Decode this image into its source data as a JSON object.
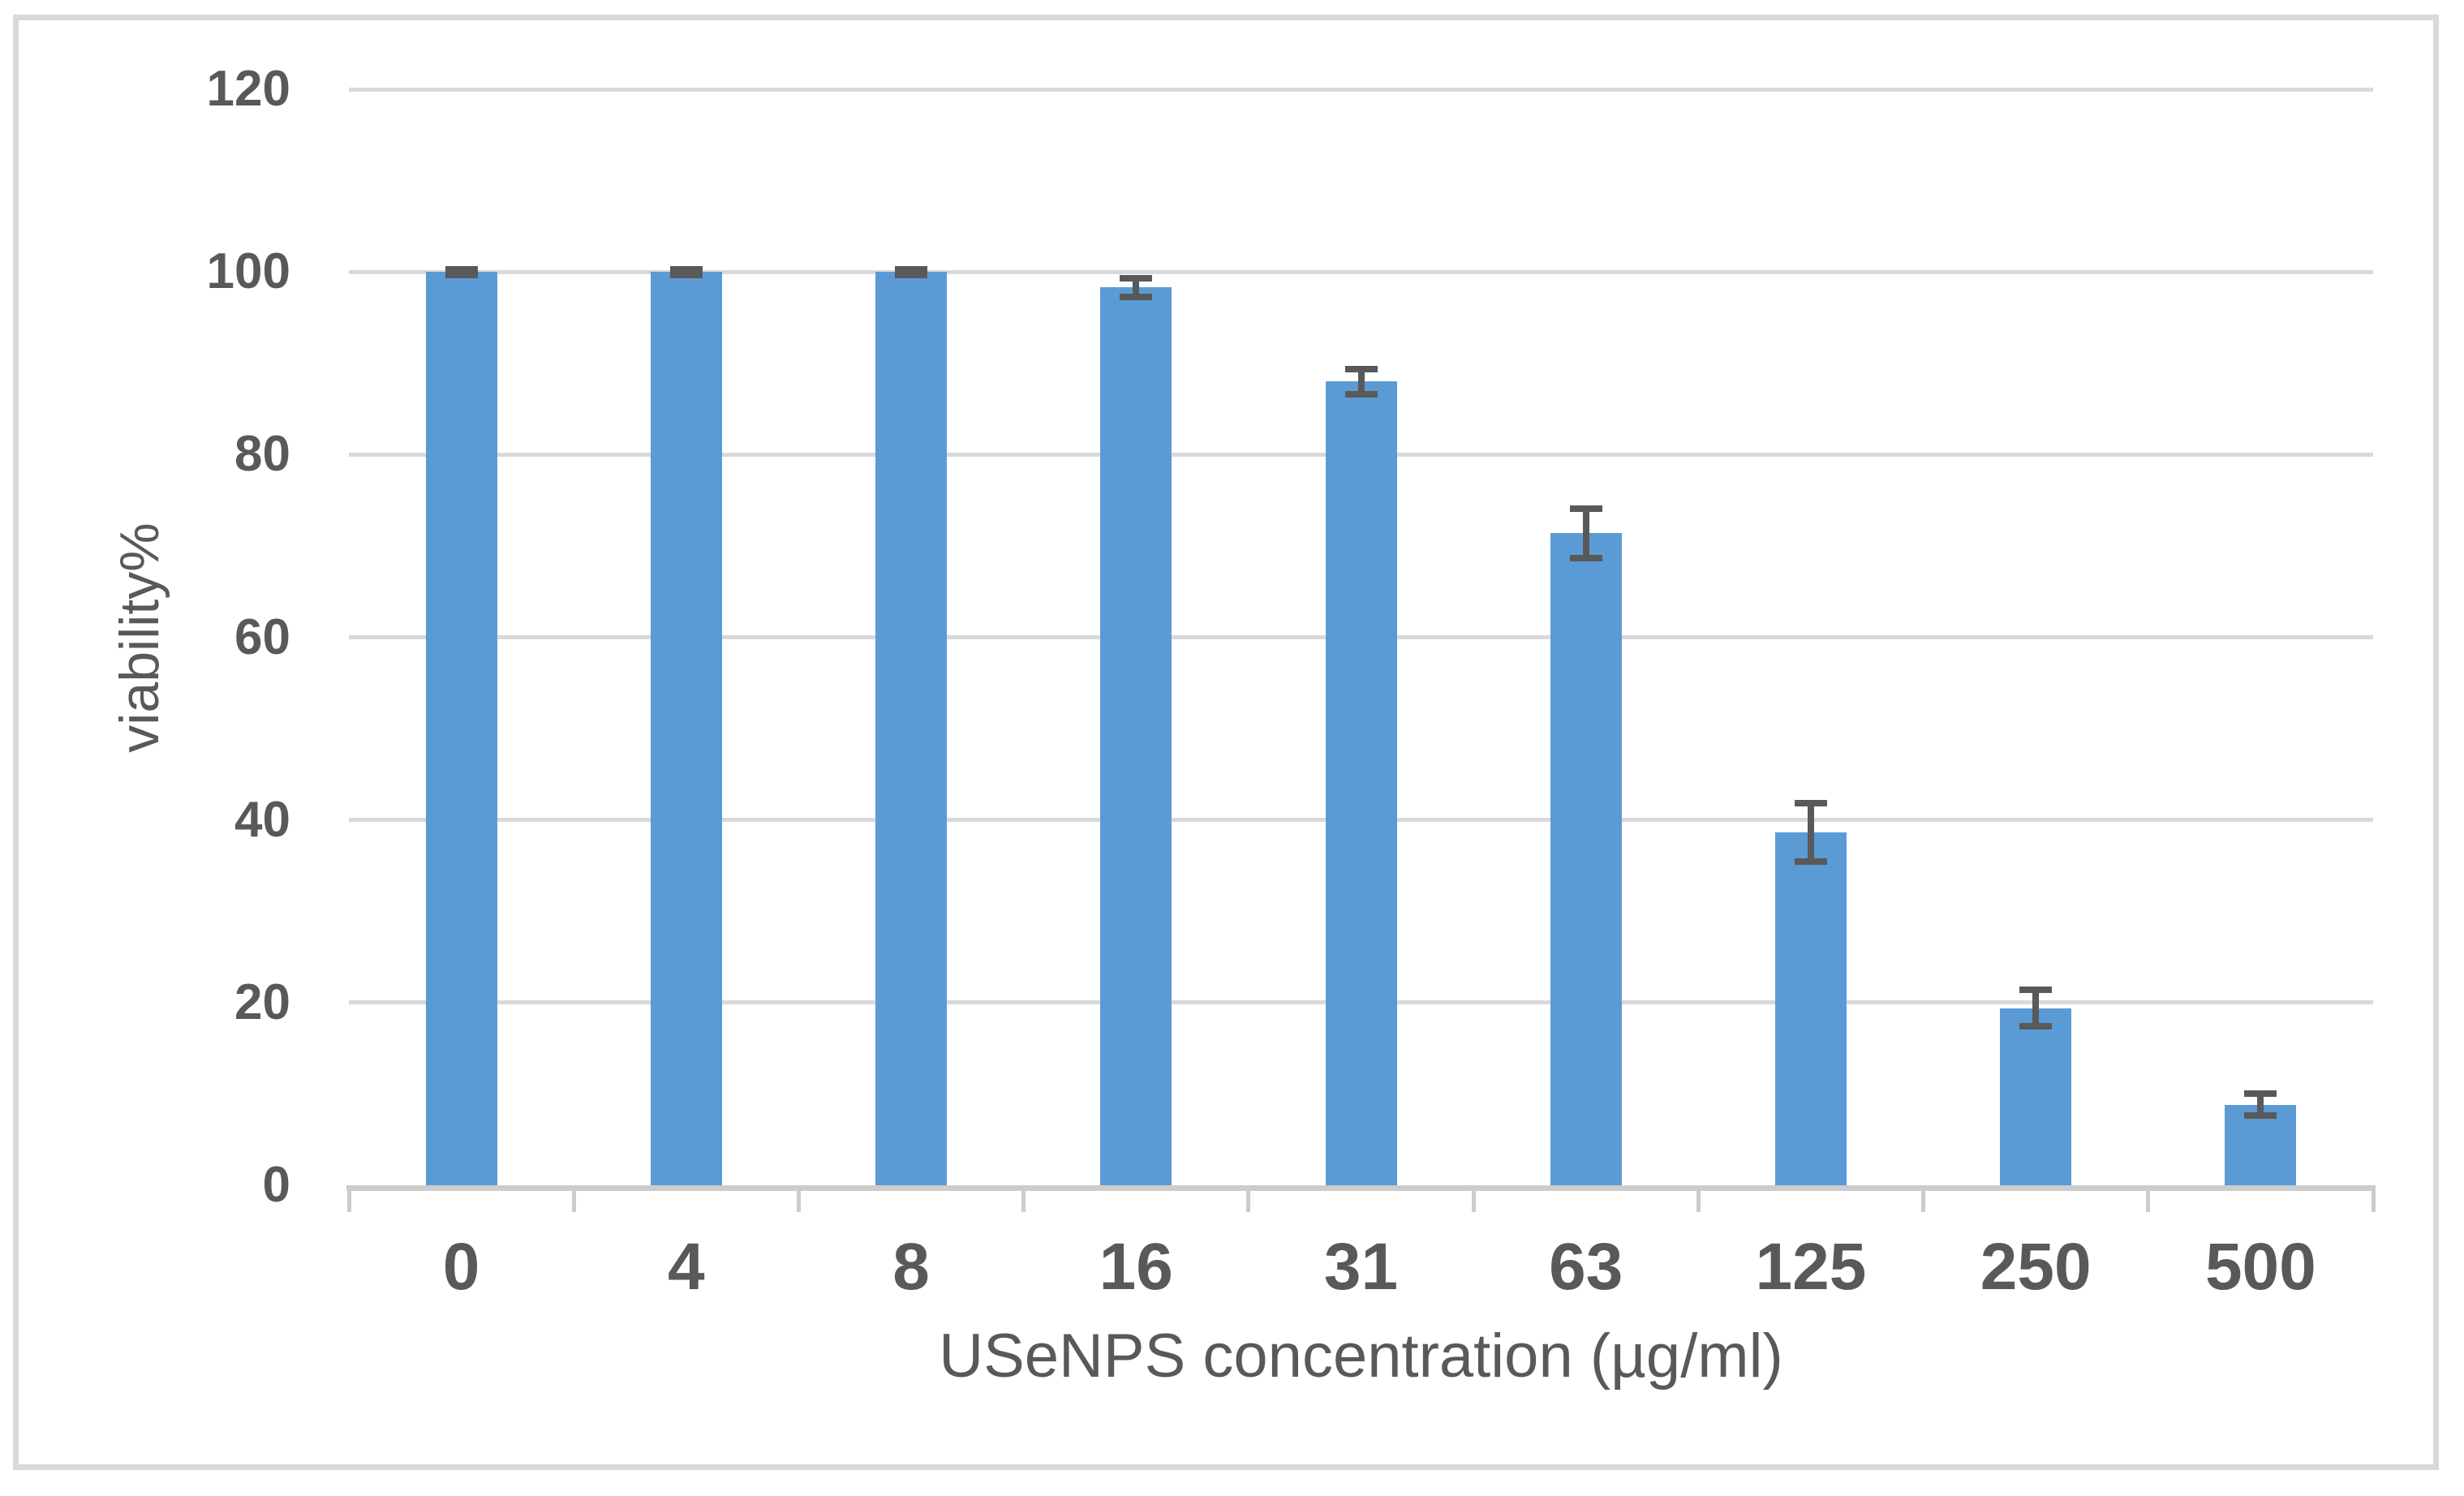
{
  "chart_data": {
    "type": "bar",
    "title": "",
    "xlabel": "USeNPS concentration (µg/ml)",
    "ylabel": "viability%",
    "categories": [
      "0",
      "4",
      "8",
      "16",
      "31",
      "63",
      "125",
      "250",
      "500"
    ],
    "series": [
      {
        "name": "viability%",
        "values": [
          100,
          100,
          100,
          98.3,
          88,
          71.4,
          38.6,
          19.4,
          8.8
        ],
        "error_bars": [
          0.3,
          0.3,
          0.3,
          1.0,
          1.4,
          2.7,
          3.2,
          2.0,
          1.2
        ]
      }
    ],
    "ylim": [
      0,
      120
    ],
    "yticks": [
      0,
      20,
      40,
      60,
      80,
      100,
      120
    ],
    "grid": "horizontal",
    "legend_position": "none",
    "bar_color": "#5b9bd5",
    "error_bar_color": "#595959",
    "gridline_color": "#d9d9d9",
    "axis_line_color": "#cccccc",
    "text_color": "#595959",
    "frame_color": "#d9d9d9",
    "background_color": "#ffffff"
  }
}
